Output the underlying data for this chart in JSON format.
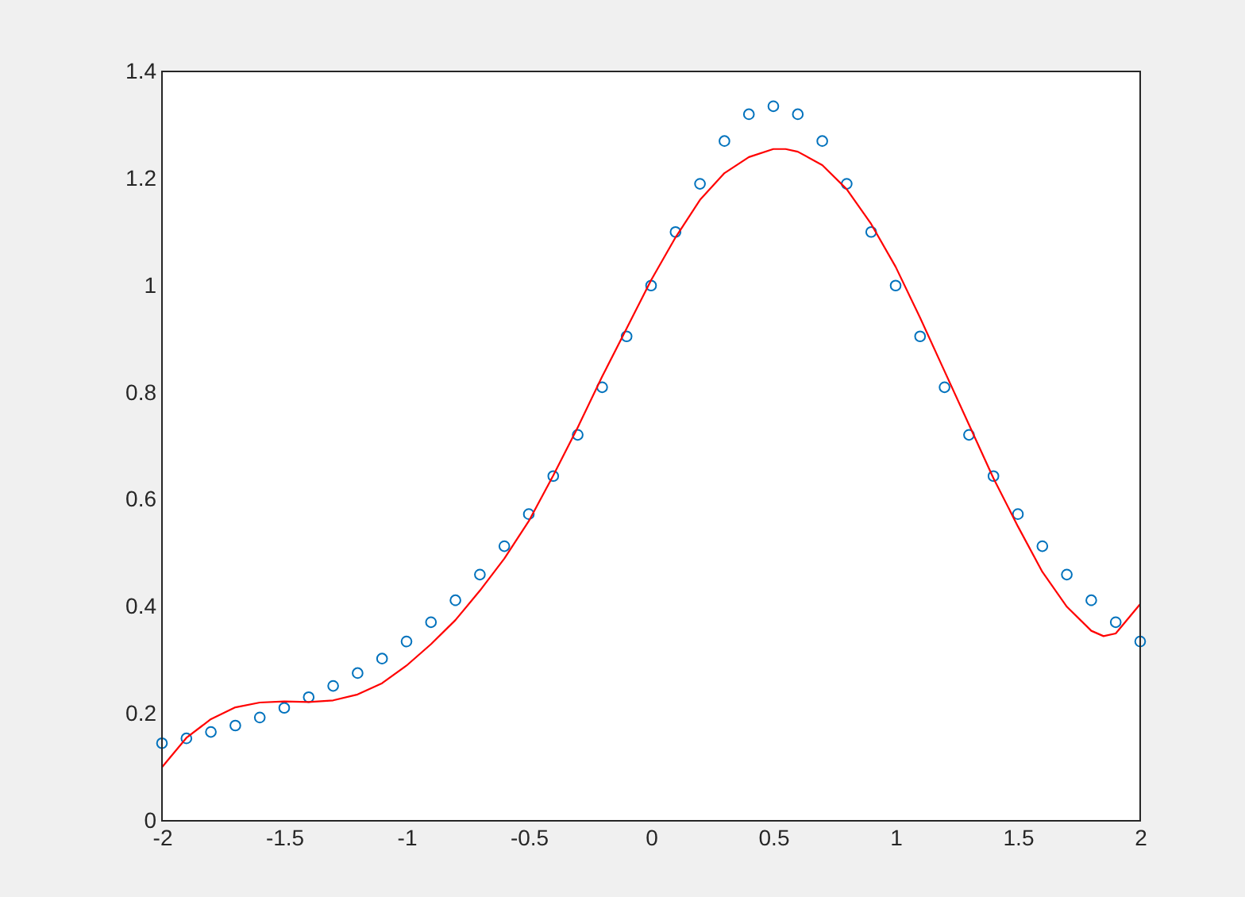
{
  "chart_data": {
    "type": "scatter",
    "xlim": [
      -2,
      2
    ],
    "ylim": [
      0,
      1.4
    ],
    "xticks": [
      -2,
      -1.5,
      -1,
      -0.5,
      0,
      0.5,
      1,
      1.5,
      2
    ],
    "yticks": [
      0,
      0.2,
      0.4,
      0.6,
      0.8,
      1,
      1.2,
      1.4
    ],
    "grid": false,
    "series": [
      {
        "marker": "circle",
        "color": "#0072bd",
        "x": [
          -2,
          -1.9,
          -1.8,
          -1.7,
          -1.6,
          -1.5,
          -1.4,
          -1.3,
          -1.2,
          -1.1,
          -1,
          -0.9,
          -0.8,
          -0.7,
          -0.6,
          -0.5,
          -0.4,
          -0.3,
          -0.2,
          -0.1,
          0,
          0.1,
          0.2,
          0.3,
          0.4,
          0.5,
          0.6,
          0.7,
          0.8,
          0.9,
          1,
          1.1,
          1.2,
          1.3,
          1.4,
          1.5,
          1.6,
          1.7,
          1.8,
          1.9,
          2
        ],
        "values": [
          0.145,
          0.154,
          0.166,
          0.178,
          0.193,
          0.211,
          0.231,
          0.252,
          0.276,
          0.303,
          0.335,
          0.371,
          0.412,
          0.46,
          0.513,
          0.573,
          0.644,
          0.721,
          0.81,
          0.905,
          1.0,
          1.1,
          1.19,
          1.27,
          1.32,
          1.335,
          1.32,
          1.27,
          1.19,
          1.1,
          1.0,
          0.905,
          0.81,
          0.721,
          0.644,
          0.573,
          0.513,
          0.46,
          0.412,
          0.371,
          0.335
        ]
      },
      {
        "type": "line",
        "marker": "none",
        "color": "#ff0000",
        "x": [
          -2,
          -1.9,
          -1.8,
          -1.7,
          -1.6,
          -1.5,
          -1.4,
          -1.3,
          -1.2,
          -1.1,
          -1,
          -0.9,
          -0.8,
          -0.7,
          -0.6,
          -0.5,
          -0.4,
          -0.3,
          -0.2,
          -0.1,
          0,
          0.1,
          0.2,
          0.3,
          0.4,
          0.5,
          0.55,
          0.6,
          0.7,
          0.8,
          0.9,
          1,
          1.1,
          1.2,
          1.3,
          1.4,
          1.5,
          1.6,
          1.7,
          1.8,
          1.85,
          1.9,
          2
        ],
        "values": [
          0.1,
          0.155,
          0.19,
          0.212,
          0.221,
          0.223,
          0.222,
          0.225,
          0.236,
          0.257,
          0.29,
          0.33,
          0.375,
          0.43,
          0.49,
          0.56,
          0.645,
          0.735,
          0.83,
          0.92,
          1.01,
          1.09,
          1.16,
          1.21,
          1.24,
          1.255,
          1.255,
          1.25,
          1.225,
          1.18,
          1.115,
          1.035,
          0.94,
          0.84,
          0.74,
          0.64,
          0.55,
          0.465,
          0.4,
          0.355,
          0.345,
          0.35,
          0.405
        ]
      }
    ]
  }
}
